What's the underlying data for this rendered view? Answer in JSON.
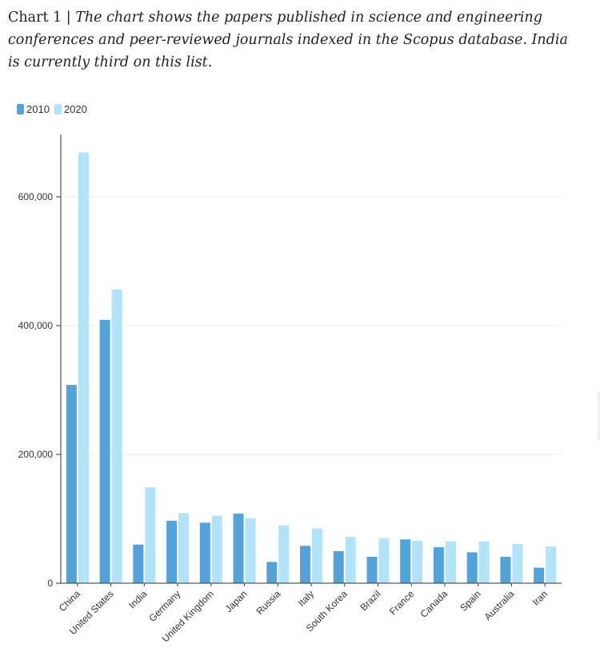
{
  "caption": {
    "lead": "Chart 1 | ",
    "description": "The chart shows the papers published in science and engineering conferences and peer-reviewed journals indexed in the Scopus database. India is currently third on this list."
  },
  "colors": {
    "series_2010": "#52a3d9",
    "series_2020": "#b3e3f9",
    "gridline": "#eeeeee",
    "axis": "#333333"
  },
  "chart_data": {
    "type": "bar",
    "categories": [
      "China",
      "United States",
      "India",
      "Germany",
      "United Kingdom",
      "Japan",
      "Russia",
      "Italy",
      "South Korea",
      "Brazil",
      "France",
      "Canada",
      "Spain",
      "Australia",
      "Iran"
    ],
    "series": [
      {
        "name": "2010",
        "values": [
          308000,
          409000,
          60000,
          97000,
          94000,
          108000,
          33000,
          58000,
          50000,
          41000,
          68000,
          56000,
          48000,
          41000,
          24000
        ]
      },
      {
        "name": "2020",
        "values": [
          669000,
          456000,
          149000,
          109000,
          105000,
          101000,
          90000,
          85000,
          72000,
          70000,
          66000,
          65000,
          65000,
          61000,
          57000
        ]
      }
    ],
    "yticks": [
      0,
      200000,
      400000,
      600000
    ],
    "ytick_labels": [
      "0",
      "200,000",
      "400,000",
      "600,000"
    ],
    "ylim": [
      0,
      697000
    ],
    "grid": true,
    "legend_position": "top-left"
  }
}
